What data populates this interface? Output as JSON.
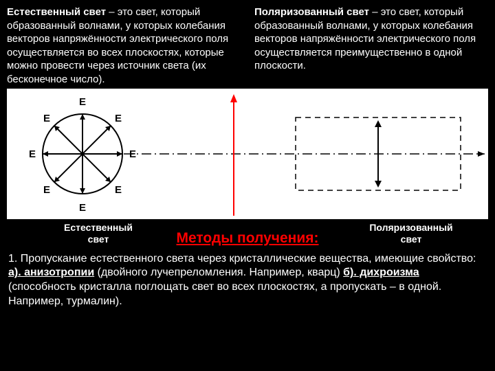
{
  "definitions": {
    "left": {
      "term": "Естественный свет",
      "text": " – это свет, который образованный волнами, у которых колебания векторов напряжённости электрического поля  осуществляется во всех плоскостях, которые можно провести через источник света (их бесконечное число)."
    },
    "right": {
      "term": "Поляризованный свет",
      "text": " – это свет, который образованный волнами, у которых колебания векторов напряжённости электрического поля  осуществляется преимущественно в одной плоскости."
    }
  },
  "diagram": {
    "left_label": "Естественный\nсвет",
    "right_label": "Поляризованный\nсвет",
    "e_label": "Е",
    "colors": {
      "bg": "#ffffff",
      "line": "#000000",
      "ray": "#ff0000",
      "dash": "#000000"
    }
  },
  "methods": {
    "title": "Методы получения:",
    "item1_prefix": "1. Пропускание естественного света через кристаллические вещества, имеющие свойство: ",
    "a_label": "а). анизотропии",
    "a_text": " (двойного лучепреломления. Например, кварц) ",
    "b_label": "б). дихроизма",
    "b_text": " (способность кристалла поглощать свет во всех плоскостях, а пропускать – в одной. Например, турмалин)."
  }
}
